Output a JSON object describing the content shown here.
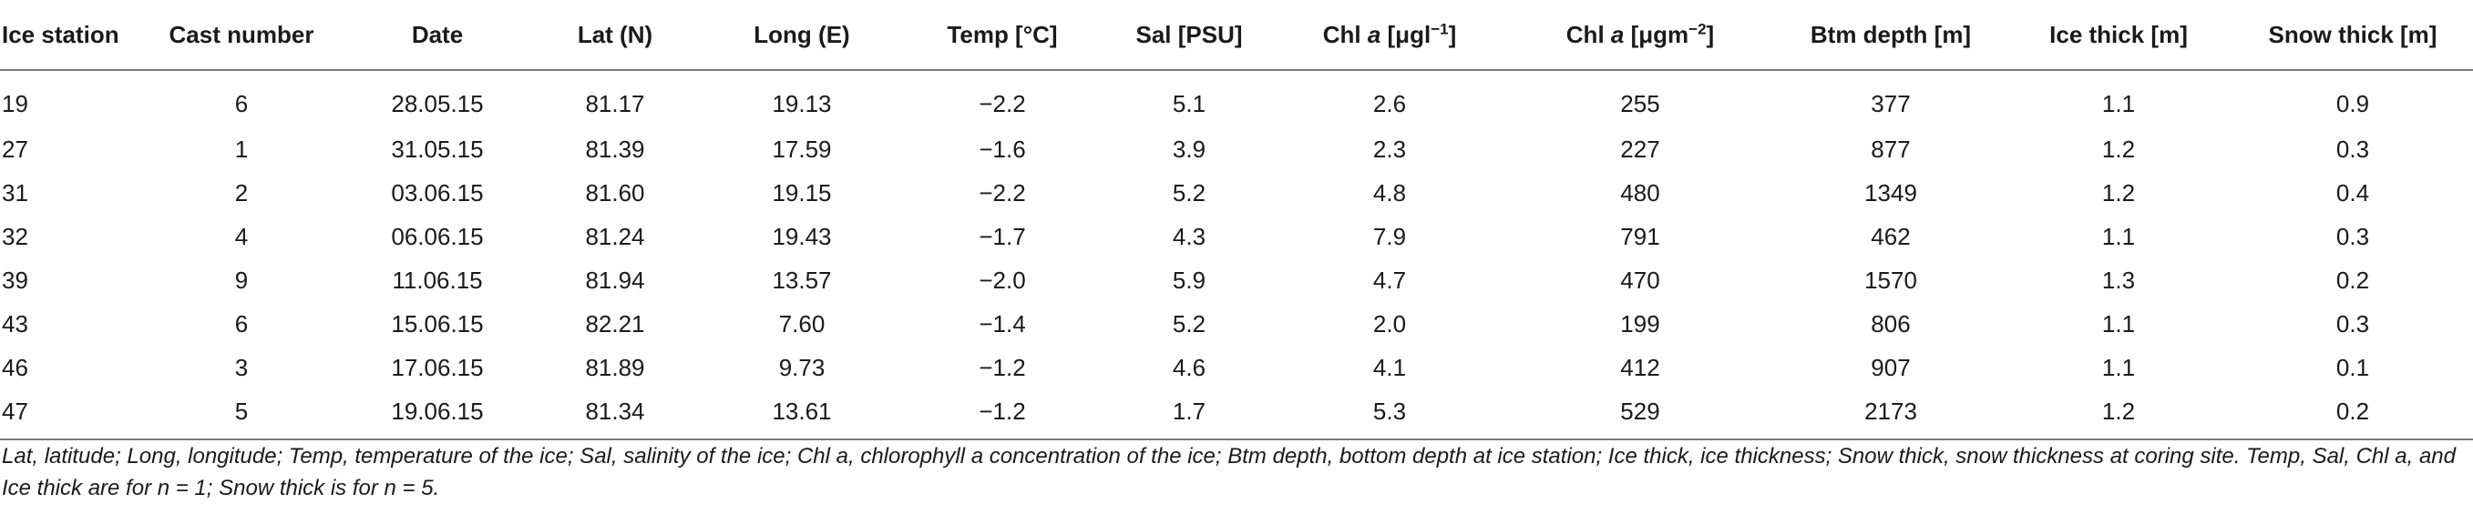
{
  "table": {
    "headers": {
      "ice_station": "Ice station",
      "cast_number": "Cast number",
      "date": "Date",
      "lat": "Lat (N)",
      "long": "Long (E)",
      "temp": "Temp [°C]",
      "sal": "Sal [PSU]",
      "chl_conc": {
        "prefix": "Chl ",
        "italic": "a",
        "unit_a": " [μgl",
        "sup": "−1",
        "unit_b": "]"
      },
      "chl_area": {
        "prefix": "Chl ",
        "italic": "a",
        "unit_a": " [μgm",
        "sup": "−2",
        "unit_b": "]"
      },
      "btm_depth": "Btm depth [m]",
      "ice_thick": "Ice thick [m]",
      "snow_thick": "Snow thick [m]"
    },
    "rows": [
      [
        "19",
        "6",
        "28.05.15",
        "81.17",
        "19.13",
        "−2.2",
        "5.1",
        "2.6",
        "255",
        "377",
        "1.1",
        "0.9"
      ],
      [
        "27",
        "1",
        "31.05.15",
        "81.39",
        "17.59",
        "−1.6",
        "3.9",
        "2.3",
        "227",
        "877",
        "1.2",
        "0.3"
      ],
      [
        "31",
        "2",
        "03.06.15",
        "81.60",
        "19.15",
        "−2.2",
        "5.2",
        "4.8",
        "480",
        "1349",
        "1.2",
        "0.4"
      ],
      [
        "32",
        "4",
        "06.06.15",
        "81.24",
        "19.43",
        "−1.7",
        "4.3",
        "7.9",
        "791",
        "462",
        "1.1",
        "0.3"
      ],
      [
        "39",
        "9",
        "11.06.15",
        "81.94",
        "13.57",
        "−2.0",
        "5.9",
        "4.7",
        "470",
        "1570",
        "1.3",
        "0.2"
      ],
      [
        "43",
        "6",
        "15.06.15",
        "82.21",
        "7.60",
        "−1.4",
        "5.2",
        "2.0",
        "199",
        "806",
        "1.1",
        "0.3"
      ],
      [
        "46",
        "3",
        "17.06.15",
        "81.89",
        "9.73",
        "−1.2",
        "4.6",
        "4.1",
        "412",
        "907",
        "1.1",
        "0.1"
      ],
      [
        "47",
        "5",
        "19.06.15",
        "81.34",
        "13.61",
        "−1.2",
        "1.7",
        "5.3",
        "529",
        "2173",
        "1.2",
        "0.2"
      ]
    ]
  },
  "footnote": "Lat, latitude; Long, longitude; Temp, temperature of the ice; Sal, salinity of the ice; Chl a, chlorophyll a concentration of the ice; Btm depth, bottom depth at ice station; Ice thick, ice thickness; Snow thick, snow thickness at coring site. Temp, Sal, Chl a, and Ice thick are for n = 1; Snow thick is for n = 5."
}
